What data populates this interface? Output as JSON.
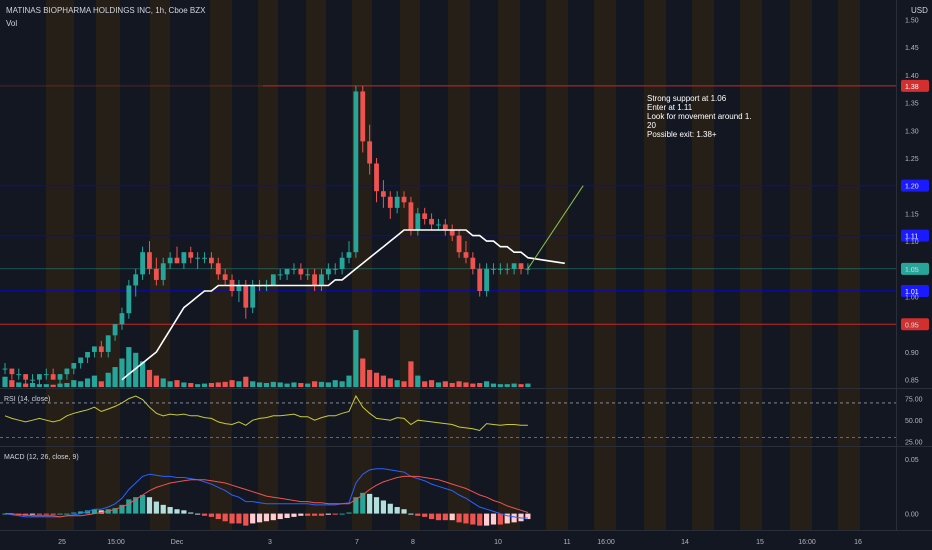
{
  "header": {
    "symbol_line": "MATINAS BIOPHARMA HOLDINGS INC, 1h, Cboe BZX",
    "vol_label": "Vol",
    "currency": "USD"
  },
  "annotation": {
    "lines": [
      "Strong support at 1.06",
      "Enter at 1.11",
      "Look for movement around 1.",
      "20",
      "Possible exit: 1.38+"
    ]
  },
  "colors": {
    "background": "#131722",
    "up": "#26a69a",
    "down": "#ef5350",
    "ma": "#ffffff",
    "support_line": "#0000ff",
    "resist_line": "#f23645",
    "session_band": "#2a2116",
    "rsi": "#c9c93a",
    "macd": "#2962ff",
    "signal": "#ef5350",
    "hist_up_strong": "#26a69a",
    "hist_up_weak": "#b2dfdb",
    "hist_down_strong": "#ef5350",
    "hist_down_weak": "#ffcdd2"
  },
  "chart_data": {
    "type": "candlestick",
    "price_axis": {
      "ticks": [
        "1.50",
        "1.45",
        "1.40",
        "1.35",
        "1.30",
        "1.25",
        "1.20",
        "1.15",
        "1.10",
        "1.05",
        "1.00",
        "0.95",
        "0.90",
        "0.85"
      ],
      "ylim": [
        0.835,
        1.535
      ]
    },
    "time_axis": {
      "labels": [
        "25",
        "15:00",
        "Dec",
        "3",
        "7",
        "8",
        "10",
        "11",
        "16:00",
        "14",
        "15",
        "16:00",
        "16"
      ]
    },
    "horizontal_levels": [
      {
        "price": 1.38,
        "label": "1.38",
        "kind": "resistance"
      },
      {
        "price": 1.2,
        "label": "1.20",
        "kind": "support"
      },
      {
        "price": 1.11,
        "label": "1.11",
        "kind": "support"
      },
      {
        "price": 1.01,
        "label": "1.01",
        "kind": "support"
      },
      {
        "price": 0.95,
        "label": "0.95",
        "kind": "resistance"
      }
    ],
    "last_price": {
      "price": 1.05,
      "label": "1.05"
    },
    "candles": [
      [
        0.87,
        0.88,
        0.86,
        0.87
      ],
      [
        0.87,
        0.87,
        0.85,
        0.86
      ],
      [
        0.86,
        0.87,
        0.85,
        0.86
      ],
      [
        0.86,
        0.86,
        0.84,
        0.85
      ],
      [
        0.85,
        0.86,
        0.84,
        0.85
      ],
      [
        0.85,
        0.86,
        0.84,
        0.86
      ],
      [
        0.86,
        0.87,
        0.85,
        0.86
      ],
      [
        0.86,
        0.87,
        0.85,
        0.85
      ],
      [
        0.85,
        0.86,
        0.84,
        0.86
      ],
      [
        0.86,
        0.87,
        0.85,
        0.87
      ],
      [
        0.87,
        0.88,
        0.86,
        0.88
      ],
      [
        0.88,
        0.89,
        0.87,
        0.89
      ],
      [
        0.89,
        0.9,
        0.88,
        0.9
      ],
      [
        0.9,
        0.91,
        0.89,
        0.91
      ],
      [
        0.91,
        0.92,
        0.89,
        0.9
      ],
      [
        0.9,
        0.93,
        0.89,
        0.93
      ],
      [
        0.93,
        0.95,
        0.92,
        0.95
      ],
      [
        0.95,
        0.98,
        0.94,
        0.97
      ],
      [
        0.97,
        1.03,
        0.96,
        1.02
      ],
      [
        1.02,
        1.05,
        1.0,
        1.04
      ],
      [
        1.04,
        1.09,
        1.03,
        1.08
      ],
      [
        1.08,
        1.1,
        1.04,
        1.05
      ],
      [
        1.05,
        1.07,
        1.02,
        1.03
      ],
      [
        1.03,
        1.07,
        1.02,
        1.06
      ],
      [
        1.06,
        1.08,
        1.05,
        1.07
      ],
      [
        1.07,
        1.09,
        1.06,
        1.06
      ],
      [
        1.06,
        1.08,
        1.05,
        1.08
      ],
      [
        1.08,
        1.09,
        1.06,
        1.07
      ],
      [
        1.07,
        1.08,
        1.05,
        1.07
      ],
      [
        1.07,
        1.08,
        1.06,
        1.07
      ],
      [
        1.07,
        1.08,
        1.05,
        1.06
      ],
      [
        1.06,
        1.07,
        1.03,
        1.04
      ],
      [
        1.04,
        1.05,
        1.02,
        1.03
      ],
      [
        1.03,
        1.04,
        1.0,
        1.01
      ],
      [
        1.01,
        1.03,
        0.99,
        1.02
      ],
      [
        1.02,
        1.03,
        0.96,
        0.98
      ],
      [
        0.98,
        1.03,
        0.97,
        1.02
      ],
      [
        1.02,
        1.03,
        1.01,
        1.02
      ],
      [
        1.02,
        1.03,
        1.01,
        1.02
      ],
      [
        1.02,
        1.04,
        1.02,
        1.04
      ],
      [
        1.04,
        1.05,
        1.03,
        1.04
      ],
      [
        1.04,
        1.05,
        1.03,
        1.05
      ],
      [
        1.05,
        1.06,
        1.04,
        1.05
      ],
      [
        1.05,
        1.06,
        1.03,
        1.04
      ],
      [
        1.04,
        1.05,
        1.03,
        1.04
      ],
      [
        1.04,
        1.05,
        1.01,
        1.02
      ],
      [
        1.02,
        1.05,
        1.01,
        1.04
      ],
      [
        1.04,
        1.06,
        1.03,
        1.05
      ],
      [
        1.05,
        1.06,
        1.04,
        1.05
      ],
      [
        1.05,
        1.08,
        1.04,
        1.07
      ],
      [
        1.07,
        1.1,
        1.06,
        1.08
      ],
      [
        1.08,
        1.38,
        1.07,
        1.37
      ],
      [
        1.37,
        1.38,
        1.26,
        1.28
      ],
      [
        1.28,
        1.31,
        1.22,
        1.24
      ],
      [
        1.24,
        1.25,
        1.17,
        1.19
      ],
      [
        1.19,
        1.21,
        1.16,
        1.18
      ],
      [
        1.18,
        1.19,
        1.14,
        1.16
      ],
      [
        1.16,
        1.19,
        1.15,
        1.18
      ],
      [
        1.18,
        1.19,
        1.16,
        1.17
      ],
      [
        1.17,
        1.18,
        1.11,
        1.12
      ],
      [
        1.12,
        1.16,
        1.11,
        1.15
      ],
      [
        1.15,
        1.16,
        1.13,
        1.14
      ],
      [
        1.14,
        1.15,
        1.12,
        1.13
      ],
      [
        1.13,
        1.14,
        1.12,
        1.13
      ],
      [
        1.13,
        1.14,
        1.11,
        1.12
      ],
      [
        1.12,
        1.13,
        1.1,
        1.11
      ],
      [
        1.11,
        1.12,
        1.07,
        1.08
      ],
      [
        1.08,
        1.1,
        1.06,
        1.07
      ],
      [
        1.07,
        1.08,
        1.04,
        1.05
      ],
      [
        1.05,
        1.06,
        1.0,
        1.01
      ],
      [
        1.01,
        1.06,
        1.0,
        1.05
      ],
      [
        1.05,
        1.06,
        1.04,
        1.05
      ],
      [
        1.05,
        1.06,
        1.04,
        1.05
      ],
      [
        1.05,
        1.06,
        1.04,
        1.05
      ],
      [
        1.05,
        1.06,
        1.04,
        1.06
      ],
      [
        1.06,
        1.06,
        1.04,
        1.05
      ],
      [
        1.05,
        1.06,
        1.04,
        1.05
      ]
    ],
    "volume_relative": [
      0.18,
      0.12,
      0.08,
      0.06,
      0.07,
      0.05,
      0.05,
      0.04,
      0.06,
      0.07,
      0.12,
      0.1,
      0.15,
      0.2,
      0.1,
      0.25,
      0.35,
      0.5,
      0.7,
      0.6,
      0.45,
      0.3,
      0.2,
      0.15,
      0.1,
      0.12,
      0.08,
      0.07,
      0.05,
      0.06,
      0.07,
      0.08,
      0.09,
      0.12,
      0.1,
      0.18,
      0.1,
      0.08,
      0.07,
      0.09,
      0.08,
      0.06,
      0.08,
      0.07,
      0.06,
      0.1,
      0.09,
      0.08,
      0.12,
      0.1,
      0.2,
      1.0,
      0.5,
      0.3,
      0.25,
      0.2,
      0.15,
      0.12,
      0.1,
      0.45,
      0.2,
      0.1,
      0.12,
      0.08,
      0.1,
      0.07,
      0.1,
      0.08,
      0.06,
      0.07,
      0.1,
      0.06,
      0.05,
      0.05,
      0.06,
      0.05,
      0.06
    ],
    "ma_values": [
      null,
      null,
      null,
      null,
      null,
      null,
      null,
      null,
      null,
      null,
      null,
      null,
      null,
      null,
      null,
      null,
      null,
      0.85,
      0.86,
      0.87,
      0.88,
      0.89,
      0.9,
      0.92,
      0.94,
      0.96,
      0.98,
      0.99,
      1.0,
      1.01,
      1.01,
      1.02,
      1.02,
      1.02,
      1.02,
      1.02,
      1.02,
      1.02,
      1.02,
      1.02,
      1.02,
      1.02,
      1.02,
      1.02,
      1.02,
      1.02,
      1.02,
      1.02,
      1.03,
      1.03,
      1.04,
      1.05,
      1.06,
      1.07,
      1.08,
      1.09,
      1.1,
      1.11,
      1.12,
      1.12,
      1.12,
      1.12,
      1.12,
      1.12,
      1.12,
      1.12,
      1.12,
      1.12,
      1.11,
      1.11,
      1.1,
      1.1,
      1.09,
      1.09,
      1.08,
      1.08,
      1.07
    ],
    "ma_extension": [
      {
        "bar": 77,
        "value": 1.07
      }
    ],
    "projection_line": {
      "from_bar": 76,
      "from_price": 1.05,
      "to_bar": 82,
      "to_price": 1.2
    },
    "rsi": {
      "label": "RSI (14, close)",
      "ticks": [
        "75.00",
        "50.00",
        "25.00"
      ],
      "ylim": [
        20,
        85
      ],
      "upper": 70,
      "lower": 30,
      "values": [
        55,
        52,
        50,
        48,
        50,
        52,
        50,
        48,
        50,
        55,
        58,
        60,
        62,
        65,
        60,
        63,
        66,
        70,
        75,
        78,
        74,
        65,
        58,
        55,
        57,
        56,
        57,
        55,
        55,
        53,
        52,
        48,
        46,
        45,
        48,
        44,
        50,
        52,
        53,
        55,
        55,
        56,
        57,
        54,
        54,
        50,
        53,
        55,
        55,
        58,
        60,
        78,
        65,
        58,
        52,
        51,
        50,
        53,
        52,
        45,
        50,
        49,
        48,
        47,
        46,
        45,
        42,
        41,
        40,
        38,
        46,
        45,
        44,
        45,
        45,
        44,
        44
      ]
    },
    "macd": {
      "label": "MACD (12, 26, close, 9)",
      "ticks": [
        "0.05",
        "0.00"
      ],
      "ylim": [
        -0.015,
        0.06
      ],
      "macd": [
        0.0,
        -0.001,
        -0.002,
        -0.003,
        -0.003,
        -0.003,
        -0.003,
        -0.003,
        -0.003,
        -0.002,
        -0.001,
        0.0,
        0.002,
        0.004,
        0.004,
        0.006,
        0.009,
        0.014,
        0.022,
        0.028,
        0.034,
        0.036,
        0.035,
        0.034,
        0.034,
        0.033,
        0.033,
        0.032,
        0.031,
        0.029,
        0.027,
        0.024,
        0.021,
        0.017,
        0.015,
        0.011,
        0.011,
        0.01,
        0.009,
        0.009,
        0.009,
        0.009,
        0.009,
        0.009,
        0.009,
        0.008,
        0.008,
        0.008,
        0.008,
        0.009,
        0.01,
        0.028,
        0.036,
        0.04,
        0.041,
        0.041,
        0.04,
        0.039,
        0.038,
        0.034,
        0.032,
        0.03,
        0.027,
        0.025,
        0.023,
        0.021,
        0.017,
        0.014,
        0.01,
        0.006,
        0.004,
        0.002,
        0.0,
        -0.002,
        -0.003,
        -0.004,
        -0.004
      ],
      "signal": [
        0.0,
        0.0,
        -0.001,
        -0.001,
        -0.002,
        -0.002,
        -0.002,
        -0.002,
        -0.003,
        -0.002,
        -0.002,
        -0.002,
        -0.001,
        0.0,
        0.001,
        0.002,
        0.004,
        0.006,
        0.009,
        0.013,
        0.017,
        0.021,
        0.024,
        0.026,
        0.028,
        0.029,
        0.03,
        0.031,
        0.031,
        0.031,
        0.03,
        0.029,
        0.028,
        0.026,
        0.024,
        0.022,
        0.02,
        0.018,
        0.016,
        0.015,
        0.014,
        0.013,
        0.012,
        0.011,
        0.011,
        0.01,
        0.01,
        0.009,
        0.009,
        0.009,
        0.009,
        0.013,
        0.017,
        0.022,
        0.026,
        0.029,
        0.031,
        0.033,
        0.034,
        0.034,
        0.034,
        0.033,
        0.032,
        0.031,
        0.029,
        0.027,
        0.025,
        0.023,
        0.02,
        0.017,
        0.015,
        0.012,
        0.01,
        0.007,
        0.005,
        0.003,
        0.001
      ]
    }
  }
}
